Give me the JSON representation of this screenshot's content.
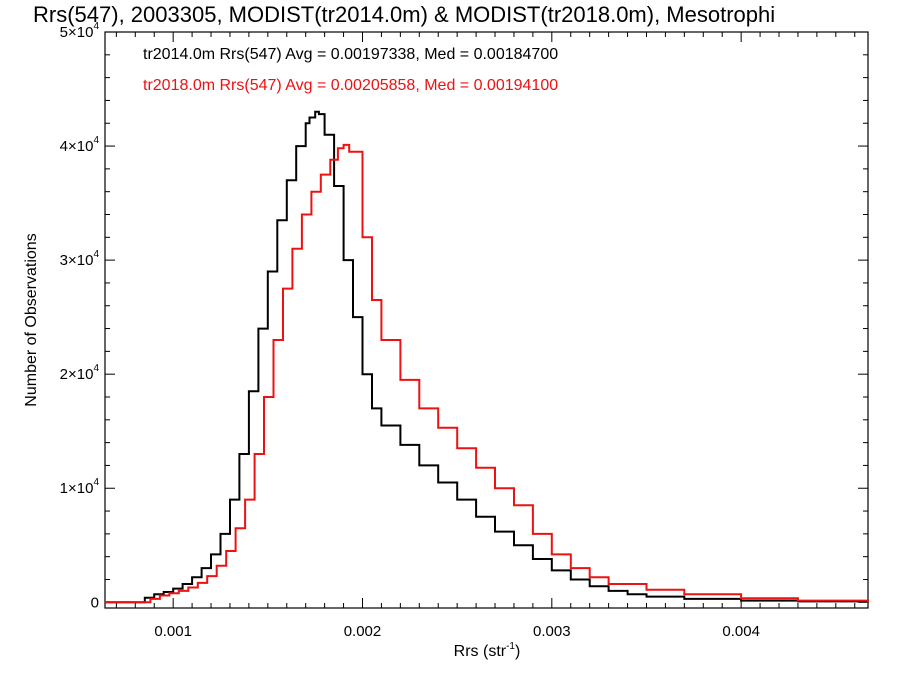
{
  "chart_data": {
    "type": "line",
    "title": "Rrs(547), 2003305, MODIST(tr2014.0m) & MODIST(tr2018.0m), Mesotrophi",
    "xlabel": "Rrs (str",
    "xlabel_sup": "-1",
    "xlabel_tail": ")",
    "ylabel": "Number of Observations",
    "xlim": [
      0.00064,
      0.00467
    ],
    "ylim": [
      -500,
      50000
    ],
    "x_ticks": [
      {
        "value": 0.001,
        "label": "0.001"
      },
      {
        "value": 0.002,
        "label": "0.002"
      },
      {
        "value": 0.003,
        "label": "0.003"
      },
      {
        "value": 0.004,
        "label": "0.004"
      }
    ],
    "y_ticks": [
      {
        "value": 0,
        "label": "0",
        "exp": ""
      },
      {
        "value": 10000,
        "label": "1×10",
        "exp": "4"
      },
      {
        "value": 20000,
        "label": "2×10",
        "exp": "4"
      },
      {
        "value": 30000,
        "label": "3×10",
        "exp": "4"
      },
      {
        "value": 40000,
        "label": "4×10",
        "exp": "4"
      },
      {
        "value": 50000,
        "label": "5×10",
        "exp": "4"
      }
    ],
    "annotations": [
      {
        "text": "tr2014.0m Rrs(547) Avg = 0.00197338, Med = 0.00184700",
        "color": "#000000"
      },
      {
        "text": "tr2018.0m Rrs(547) Avg = 0.00205858, Med = 0.00194100",
        "color": "#ee1111"
      }
    ],
    "series": [
      {
        "color": "#000000",
        "x": [
          0.00064,
          0.0008,
          0.00085,
          0.0009,
          0.00095,
          0.001,
          0.00105,
          0.0011,
          0.00115,
          0.0012,
          0.00125,
          0.0013,
          0.00135,
          0.0014,
          0.00145,
          0.0015,
          0.00155,
          0.0016,
          0.00165,
          0.0017,
          0.00172,
          0.00175,
          0.00177,
          0.0018,
          0.00185,
          0.0019,
          0.00195,
          0.002,
          0.00205,
          0.0021,
          0.0022,
          0.0023,
          0.0024,
          0.0025,
          0.0026,
          0.0027,
          0.0028,
          0.0029,
          0.003,
          0.0031,
          0.0032,
          0.0033,
          0.0034,
          0.0035,
          0.0037,
          0.004,
          0.0043,
          0.00467
        ],
        "values": [
          0,
          0,
          400,
          700,
          900,
          1200,
          1600,
          2200,
          3000,
          4200,
          6000,
          9000,
          13000,
          18500,
          24000,
          29000,
          33500,
          37000,
          40000,
          42000,
          42500,
          43000,
          42800,
          41000,
          36500,
          30000,
          25000,
          20000,
          17000,
          15500,
          13800,
          12000,
          10500,
          9000,
          7500,
          6200,
          5000,
          3800,
          2800,
          2000,
          1400,
          1000,
          700,
          500,
          300,
          150,
          80,
          0
        ]
      },
      {
        "color": "#ee1111",
        "x": [
          0.00064,
          0.00082,
          0.00088,
          0.00093,
          0.00098,
          0.00103,
          0.00108,
          0.00113,
          0.00118,
          0.00123,
          0.00128,
          0.00133,
          0.00138,
          0.00143,
          0.00148,
          0.00153,
          0.00158,
          0.00163,
          0.00168,
          0.00173,
          0.00178,
          0.00183,
          0.00187,
          0.0019,
          0.00193,
          0.002,
          0.00205,
          0.0021,
          0.0022,
          0.0023,
          0.0024,
          0.0025,
          0.0026,
          0.0027,
          0.0028,
          0.0029,
          0.003,
          0.0031,
          0.0032,
          0.0033,
          0.0035,
          0.0037,
          0.004,
          0.0043,
          0.00467
        ],
        "values": [
          0,
          0,
          300,
          600,
          800,
          1000,
          1300,
          1700,
          2300,
          3200,
          4500,
          6500,
          9000,
          13000,
          18000,
          23000,
          27500,
          31000,
          34000,
          36000,
          37500,
          38800,
          39800,
          40100,
          39500,
          32000,
          26500,
          23000,
          19500,
          17000,
          15300,
          13500,
          11800,
          10000,
          8500,
          6000,
          4200,
          3000,
          2200,
          1600,
          1100,
          700,
          350,
          150,
          0
        ]
      }
    ],
    "grid": false,
    "legend": "none"
  }
}
